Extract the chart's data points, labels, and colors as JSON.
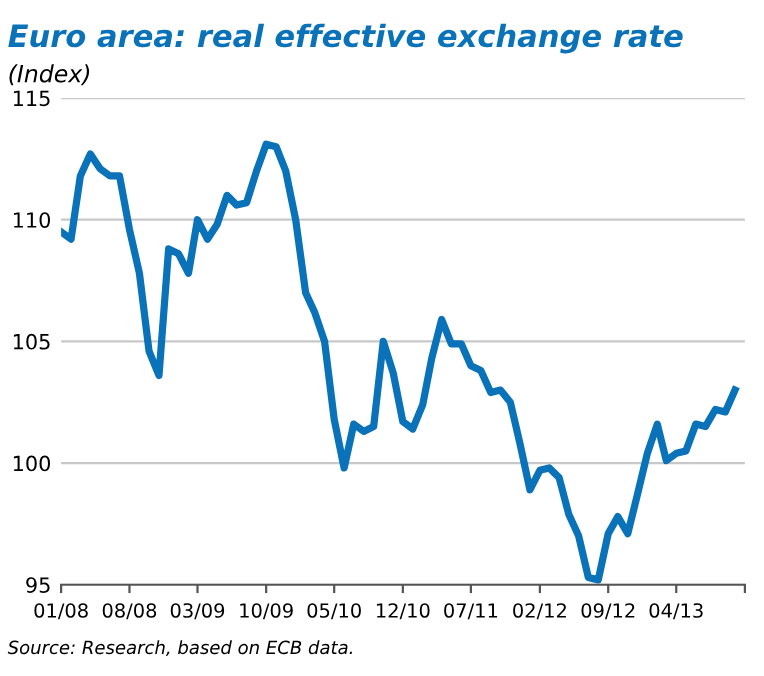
{
  "chart_data": {
    "type": "line",
    "title": "Euro area: real effective exchange rate",
    "subtitle": "(Index)",
    "annotations": [
      "Source: Research, based on ECB data."
    ],
    "x": [
      "2008-01",
      "2008-02",
      "2008-03",
      "2008-04",
      "2008-05",
      "2008-06",
      "2008-07",
      "2008-08",
      "2008-09",
      "2008-10",
      "2008-11",
      "2008-12",
      "2009-01",
      "2009-02",
      "2009-03",
      "2009-04",
      "2009-05",
      "2009-06",
      "2009-07",
      "2009-08",
      "2009-09",
      "2009-10",
      "2009-11",
      "2009-12",
      "2010-01",
      "2010-02",
      "2010-03",
      "2010-04",
      "2010-05",
      "2010-06",
      "2010-07",
      "2010-08",
      "2010-09",
      "2010-10",
      "2010-11",
      "2010-12",
      "2011-01",
      "2011-02",
      "2011-03",
      "2011-04",
      "2011-05",
      "2011-06",
      "2011-07",
      "2011-08",
      "2011-09",
      "2011-10",
      "2011-11",
      "2011-12",
      "2012-01",
      "2012-02",
      "2012-03",
      "2012-04",
      "2012-05",
      "2012-06",
      "2012-07",
      "2012-08",
      "2012-09",
      "2012-10",
      "2012-11",
      "2012-12",
      "2013-01",
      "2013-02",
      "2013-03",
      "2013-04",
      "2013-05",
      "2013-06",
      "2013-07",
      "2013-08",
      "2013-09",
      "2013-10"
    ],
    "series": [
      {
        "color": "#0a72b9",
        "values": [
          109.5,
          109.2,
          111.8,
          112.7,
          112.1,
          111.8,
          111.8,
          109.6,
          107.8,
          104.6,
          103.6,
          108.8,
          108.6,
          107.8,
          110.0,
          109.2,
          109.8,
          111.0,
          110.6,
          110.7,
          112.0,
          113.1,
          113.0,
          112.0,
          110.0,
          107.0,
          106.2,
          105.0,
          101.8,
          99.8,
          101.6,
          101.3,
          101.5,
          105.0,
          103.7,
          101.7,
          101.4,
          102.4,
          104.3,
          105.9,
          104.9,
          104.9,
          104.0,
          103.8,
          102.9,
          103.0,
          102.5,
          100.8,
          98.9,
          99.7,
          99.8,
          99.4,
          97.9,
          97.0,
          95.3,
          95.2,
          97.1,
          97.8,
          97.1,
          98.7,
          100.4,
          101.6,
          100.1,
          100.4,
          100.5,
          101.6,
          101.5,
          102.2,
          102.1,
          103.0
        ]
      }
    ],
    "xlim": [
      "2008-01",
      "2013-11"
    ],
    "xticks": [
      {
        "value": "2008-01",
        "label": "01/08"
      },
      {
        "value": "2008-08",
        "label": "08/08"
      },
      {
        "value": "2009-03",
        "label": "03/09"
      },
      {
        "value": "2009-10",
        "label": "10/09"
      },
      {
        "value": "2010-05",
        "label": "05/10"
      },
      {
        "value": "2010-12",
        "label": "12/10"
      },
      {
        "value": "2011-07",
        "label": "07/11"
      },
      {
        "value": "2012-02",
        "label": "02/12"
      },
      {
        "value": "2012-09",
        "label": "09/12"
      },
      {
        "value": "2013-04",
        "label": "04/13"
      },
      {
        "value": "2013-11",
        "label": null
      }
    ],
    "ylim": [
      95,
      115
    ],
    "yticks": [
      95,
      100,
      105,
      110,
      115
    ],
    "grid": "y",
    "marker": "none",
    "line_style": "solid"
  }
}
